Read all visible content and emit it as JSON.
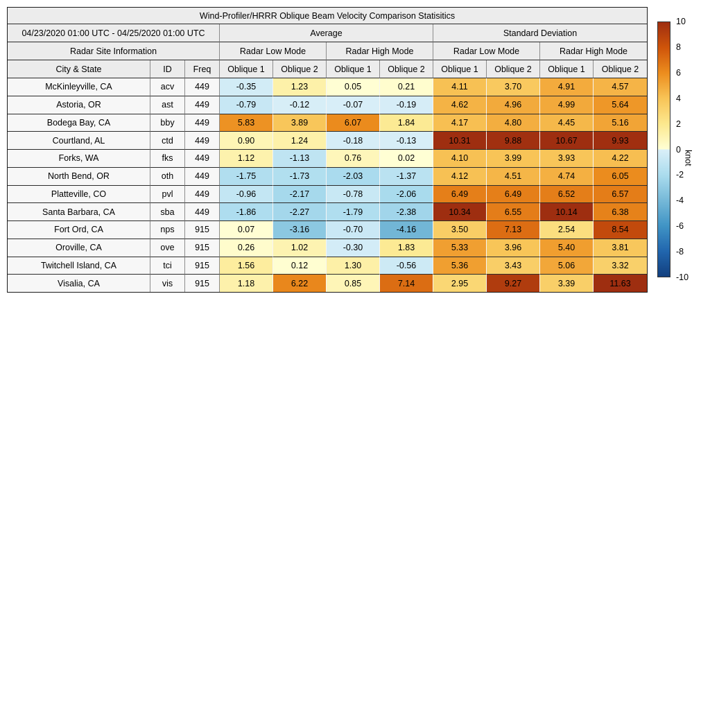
{
  "figure": {
    "title": "Wind-Profiler/HRRR Oblique Beam Velocity Comparison Statisitics",
    "period": "04/23/2020 01:00 UTC - 04/25/2020 01:00 UTC",
    "group_headers": {
      "average": "Average",
      "std": "Standard Deviation"
    },
    "site_info_header": "Radar Site Information",
    "mode_headers": [
      "Radar Low Mode",
      "Radar High Mode",
      "Radar Low Mode",
      "Radar High Mode"
    ],
    "column_headers": {
      "city": "City & State",
      "id": "ID",
      "freq": "Freq",
      "oblique1": "Oblique 1",
      "oblique2": "Oblique 2"
    }
  },
  "chart_data": {
    "type": "heatmap",
    "title": "Wind-Profiler/HRRR Oblique Beam Velocity Comparison Statisitics",
    "value_unit": "knot",
    "value_range": [
      -10,
      10
    ],
    "column_groups": [
      "Average / Radar Low Mode / Oblique 1",
      "Average / Radar Low Mode / Oblique 2",
      "Average / Radar High Mode / Oblique 1",
      "Average / Radar High Mode / Oblique 2",
      "Standard Deviation / Radar Low Mode / Oblique 1",
      "Standard Deviation / Radar Low Mode / Oblique 2",
      "Standard Deviation / Radar High Mode / Oblique 1",
      "Standard Deviation / Radar High Mode / Oblique 2"
    ],
    "rows": [
      {
        "city": "McKinleyville, CA",
        "id": "acv",
        "freq": 449,
        "values": [
          -0.35,
          1.23,
          0.05,
          0.21,
          4.11,
          3.7,
          4.91,
          4.57
        ]
      },
      {
        "city": "Astoria, OR",
        "id": "ast",
        "freq": 449,
        "values": [
          -0.79,
          -0.12,
          -0.07,
          -0.19,
          4.62,
          4.96,
          4.99,
          5.64
        ]
      },
      {
        "city": "Bodega Bay, CA",
        "id": "bby",
        "freq": 449,
        "values": [
          5.83,
          3.89,
          6.07,
          1.84,
          4.17,
          4.8,
          4.45,
          5.16
        ]
      },
      {
        "city": "Courtland, AL",
        "id": "ctd",
        "freq": 449,
        "values": [
          0.9,
          1.24,
          -0.18,
          -0.13,
          10.31,
          9.88,
          10.67,
          9.93
        ]
      },
      {
        "city": "Forks, WA",
        "id": "fks",
        "freq": 449,
        "values": [
          1.12,
          -1.13,
          0.76,
          0.02,
          4.1,
          3.99,
          3.93,
          4.22
        ]
      },
      {
        "city": "North Bend, OR",
        "id": "oth",
        "freq": 449,
        "values": [
          -1.75,
          -1.73,
          -2.03,
          -1.37,
          4.12,
          4.51,
          4.74,
          6.05
        ]
      },
      {
        "city": "Platteville, CO",
        "id": "pvl",
        "freq": 449,
        "values": [
          -0.96,
          -2.17,
          -0.78,
          -2.06,
          6.49,
          6.49,
          6.52,
          6.57
        ]
      },
      {
        "city": "Santa Barbara, CA",
        "id": "sba",
        "freq": 449,
        "values": [
          -1.86,
          -2.27,
          -1.79,
          -2.38,
          10.34,
          6.55,
          10.14,
          6.38
        ]
      },
      {
        "city": "Fort Ord, CA",
        "id": "nps",
        "freq": 915,
        "values": [
          0.07,
          -3.16,
          -0.7,
          -4.16,
          3.5,
          7.13,
          2.54,
          8.54
        ]
      },
      {
        "city": "Oroville, CA",
        "id": "ove",
        "freq": 915,
        "values": [
          0.26,
          1.02,
          -0.3,
          1.83,
          5.33,
          3.96,
          5.4,
          3.81
        ]
      },
      {
        "city": "Twitchell Island, CA",
        "id": "tci",
        "freq": 915,
        "values": [
          1.56,
          0.12,
          1.3,
          -0.56,
          5.36,
          3.43,
          5.06,
          3.32
        ]
      },
      {
        "city": "Visalia, CA",
        "id": "vis",
        "freq": 915,
        "values": [
          1.18,
          6.22,
          0.85,
          7.14,
          2.95,
          9.27,
          3.39,
          11.63
        ]
      }
    ]
  },
  "colorbar": {
    "label": "knot",
    "min": -10,
    "max": 10,
    "ticks": [
      10,
      8,
      6,
      4,
      2,
      0,
      -2,
      -4,
      -6,
      -8,
      -10
    ],
    "stops": [
      {
        "v": 10,
        "c": "#9e2e10"
      },
      {
        "v": 8,
        "c": "#cf540a"
      },
      {
        "v": 6,
        "c": "#ec8d1e"
      },
      {
        "v": 4,
        "c": "#f8c457"
      },
      {
        "v": 2,
        "c": "#fce88e"
      },
      {
        "v": 0.0001,
        "c": "#ffffd5"
      },
      {
        "v": -0.0001,
        "c": "#daeff8"
      },
      {
        "v": -2,
        "c": "#abdcee"
      },
      {
        "v": -4,
        "c": "#76b9d8"
      },
      {
        "v": -6,
        "c": "#4094c5"
      },
      {
        "v": -8,
        "c": "#2166ae"
      },
      {
        "v": -10,
        "c": "#123f7e"
      }
    ]
  }
}
